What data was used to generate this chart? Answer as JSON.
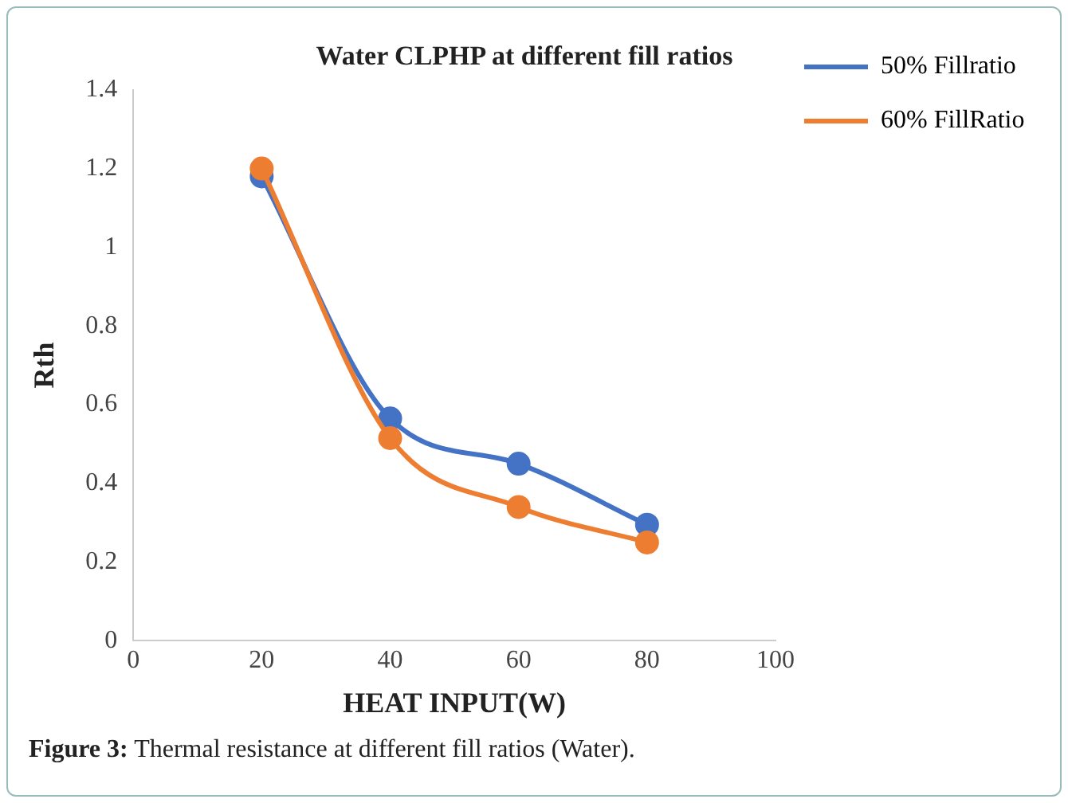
{
  "chart_data": {
    "type": "line",
    "title": "Water CLPHP at different fill ratios",
    "xlabel": "HEAT INPUT(W)",
    "ylabel": "Rth",
    "x": [
      20,
      40,
      60,
      80
    ],
    "series": [
      {
        "name": "50% Fillratio",
        "color": "#4472c4",
        "values": [
          1.18,
          0.565,
          0.45,
          0.295
        ]
      },
      {
        "name": "60% FillRatio",
        "color": "#ed7d31",
        "values": [
          1.2,
          0.515,
          0.34,
          0.25
        ]
      }
    ],
    "xlim": [
      0,
      100
    ],
    "xticks": [
      0,
      20,
      40,
      60,
      80,
      100
    ],
    "ylim": [
      0,
      1.4
    ],
    "yticks": [
      0,
      0.2,
      0.4,
      0.6,
      0.8,
      1,
      1.2,
      1.4
    ],
    "grid": false,
    "legend": "right",
    "marker": "circle",
    "line_style": "solid",
    "annotations": [
      "Figure 3: Thermal resistance at different fill ratios (Water)."
    ]
  }
}
